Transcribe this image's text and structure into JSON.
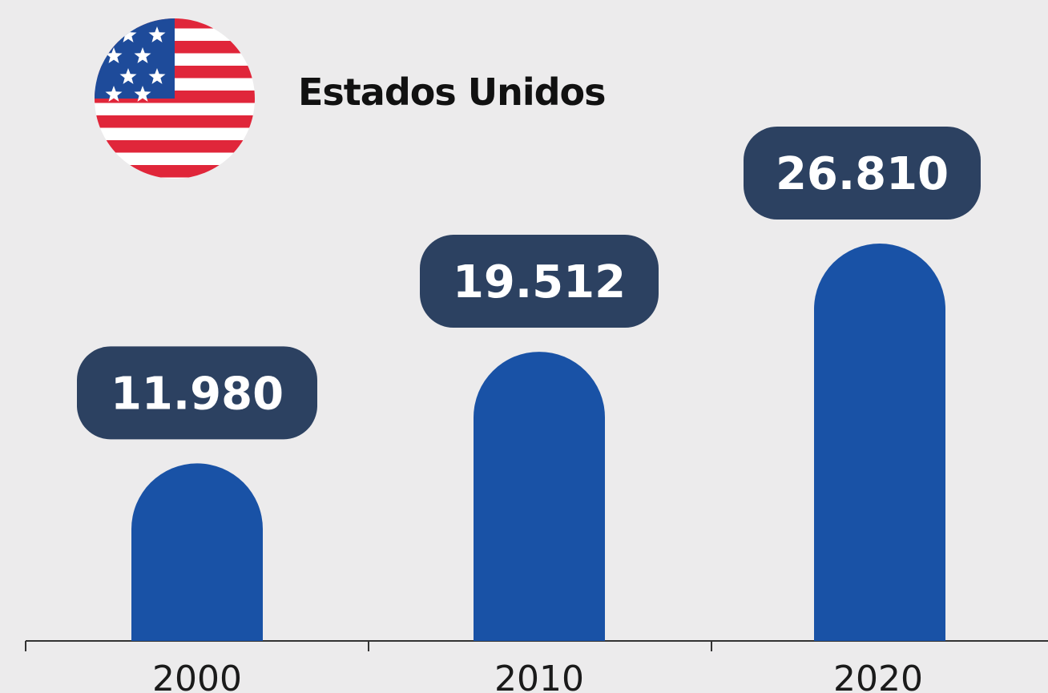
{
  "colors": {
    "background": "#ecebec",
    "bar": "#1952a6",
    "label_bg": "#2c4161",
    "label_text": "#ffffff",
    "axis": "#333333",
    "flag_red": "#e0263a",
    "flag_blue": "#1e4b9a",
    "flag_white": "#ffffff"
  },
  "header": {
    "flag_icon": "usa-flag-icon",
    "title": "Estados Unidos"
  },
  "chart_data": {
    "type": "bar",
    "categories": [
      "2000",
      "2010",
      "2020"
    ],
    "values": [
      11980,
      19512,
      26810
    ],
    "value_labels": [
      "11.980",
      "19.512",
      "26.810"
    ],
    "title": "Estados Unidos",
    "xlabel": "",
    "ylabel": "",
    "ylim": [
      0,
      26810
    ],
    "grid": false,
    "legend": "none"
  }
}
